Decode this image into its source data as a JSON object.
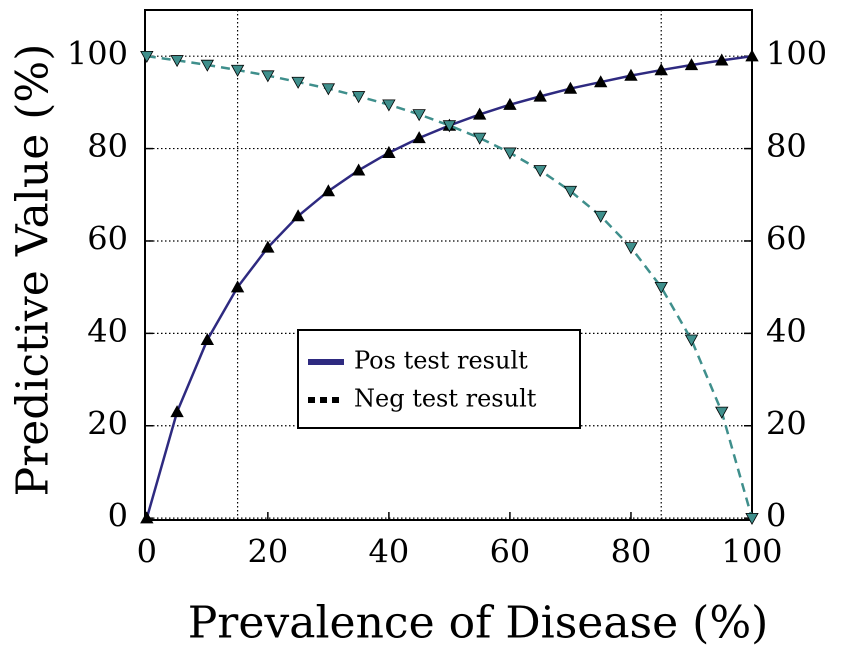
{
  "chart_data": {
    "type": "line",
    "x_label": "Prevalence of Disease (%)",
    "y_label": "Predictive Value (%)",
    "x": [
      0,
      5,
      10,
      15,
      20,
      25,
      30,
      35,
      40,
      45,
      50,
      55,
      60,
      65,
      70,
      75,
      80,
      85,
      90,
      95,
      100
    ],
    "series": [
      {
        "name": "Pos test result",
        "color": "#2e2a80",
        "marker_color": "#000000",
        "marker": "triangle-up",
        "dash": false,
        "values": [
          0,
          23.0,
          38.6,
          50,
          58.6,
          65.4,
          70.8,
          75.3,
          79.1,
          82.3,
          85,
          87.4,
          89.5,
          91.3,
          93.0,
          94.4,
          95.8,
          97.0,
          98.1,
          99.1,
          100
        ]
      },
      {
        "name": "Neg test result",
        "color": "#3f8f8c",
        "marker_color": "#3f8f8c",
        "marker": "triangle-down",
        "dash": true,
        "legend_color": "#000000",
        "values": [
          100,
          99.1,
          98.1,
          97.0,
          95.8,
          94.4,
          93.0,
          91.3,
          89.5,
          87.4,
          85,
          82.3,
          79.1,
          75.3,
          70.8,
          65.4,
          58.6,
          50,
          38.6,
          23.0,
          0
        ]
      }
    ],
    "xlim": [
      -0.3,
      100
    ],
    "ylim": [
      -0.4,
      110
    ],
    "y2lim": [
      -0.4,
      110
    ],
    "xticks": [
      0,
      20,
      40,
      60,
      80,
      100
    ],
    "yticks": [
      0,
      20,
      40,
      60,
      80,
      100
    ],
    "y2ticks": [
      0,
      20,
      40,
      60,
      80,
      100
    ],
    "vlines": [
      15,
      85
    ],
    "grid": true,
    "legend": "center"
  }
}
